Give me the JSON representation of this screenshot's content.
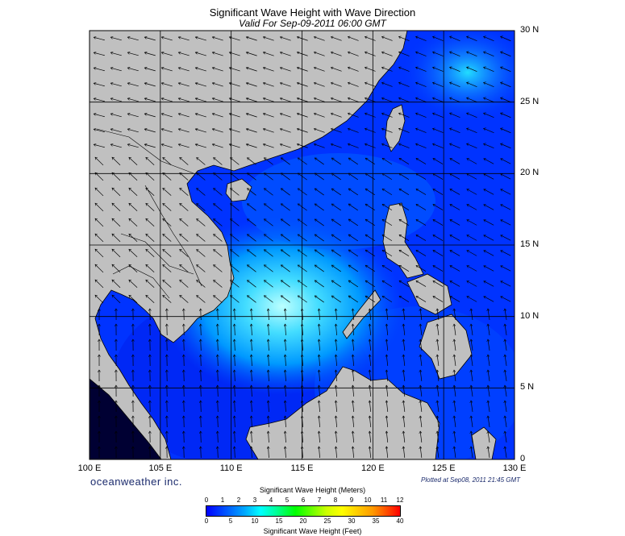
{
  "title": "Significant Wave Height with Wave Direction",
  "subtitle": "Valid For Sep-09-2011 06:00 GMT",
  "brand": "oceanweather inc.",
  "plotted": "Plotted at Sep08, 2011 21:45 GMT",
  "lon_labels": [
    "100 E",
    "105 E",
    "110 E",
    "115 E",
    "120 E",
    "125 E",
    "130 E"
  ],
  "lat_labels": [
    "30 N",
    "25 N",
    "20 N",
    "15 N",
    "10 N",
    "5 N",
    "0"
  ],
  "colorbar": {
    "title_meters": "Significant Wave Height (Meters)",
    "title_feet": "Significant Wave Height (Feet)",
    "meters_ticks": [
      "0",
      "1",
      "2",
      "3",
      "4",
      "5",
      "6",
      "7",
      "8",
      "9",
      "10",
      "11",
      "12"
    ],
    "feet_ticks": [
      "0",
      "5",
      "10",
      "15",
      "20",
      "25",
      "30",
      "35",
      "40"
    ]
  },
  "map": {
    "extent": {
      "lon_min": 100,
      "lon_max": 130,
      "lat_min": 0,
      "lat_max": 30
    },
    "land_color": "#c0c0c0",
    "sea_color": "#0033ff",
    "peak_wave_color": "#aaffff"
  }
}
